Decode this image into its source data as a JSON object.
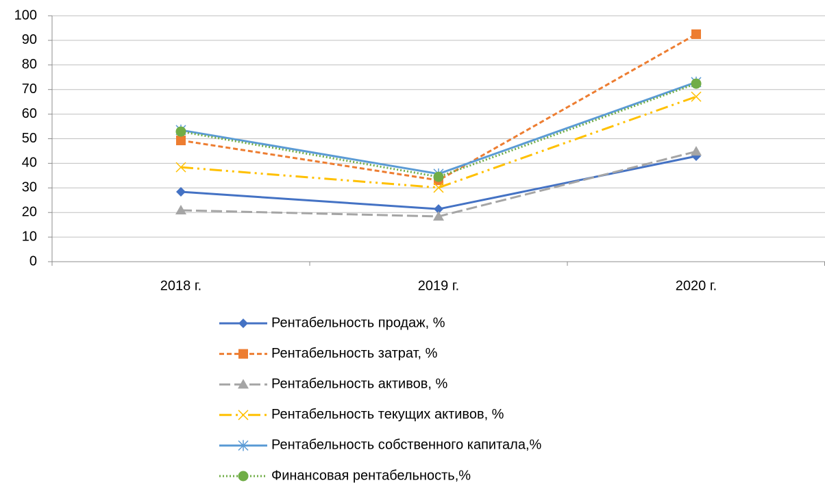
{
  "chart_data": {
    "type": "line",
    "categories": [
      "2018 г.",
      "2019 г.",
      "2020 г."
    ],
    "series": [
      {
        "name": "Рентабельность продаж, %",
        "color": "#4472c4",
        "dash": "solid",
        "marker": "diamond",
        "values": [
          28.4,
          21.4,
          42.9
        ]
      },
      {
        "name": "Рентабельность затрат, %",
        "color": "#ed7d31",
        "dash": "dash",
        "marker": "square",
        "values": [
          49.3,
          33.1,
          92.5
        ]
      },
      {
        "name": "Рентабельность активов, %",
        "color": "#a5a5a5",
        "dash": "longdash",
        "marker": "triangle",
        "values": [
          20.9,
          18.4,
          44.8
        ]
      },
      {
        "name": "Рентабельность текущих активов, %",
        "color": "#ffc000",
        "dash": "dashdotdot",
        "marker": "x",
        "values": [
          38.4,
          30.1,
          67.1
        ]
      },
      {
        "name": "Рентабельность собственного капитала,%",
        "color": "#5b9bd5",
        "dash": "solid",
        "marker": "star",
        "values": [
          53.5,
          35.7,
          73.0
        ]
      },
      {
        "name": "Финансовая рентабельность,%",
        "color": "#70ad47",
        "dash": "dot",
        "marker": "circle",
        "values": [
          52.9,
          34.5,
          72.4
        ]
      }
    ],
    "ylim": [
      0,
      100
    ],
    "yticks": [
      0,
      10,
      20,
      30,
      40,
      50,
      60,
      70,
      80,
      90,
      100
    ],
    "grid": true,
    "legend": "bottom"
  }
}
